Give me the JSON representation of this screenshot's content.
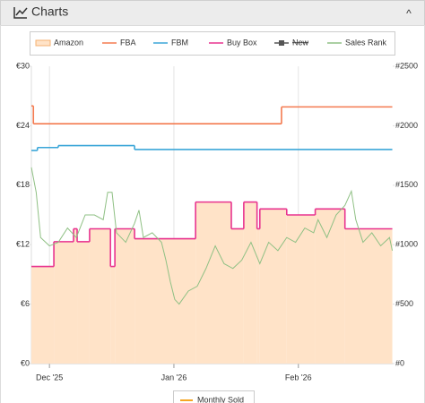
{
  "header": {
    "title": "Charts",
    "toggle": "^"
  },
  "chart_data": {
    "type": "line",
    "xlim": [
      -4.5,
      85.5
    ],
    "xticks": [
      {
        "value": 0,
        "label": "Dec '25"
      },
      {
        "value": 31,
        "label": "Jan '26"
      },
      {
        "value": 62,
        "label": "Feb '26"
      }
    ],
    "ylim": [
      0,
      30
    ],
    "yticks": [
      {
        "value": 0,
        "label": "€0"
      },
      {
        "value": 6,
        "label": "€6"
      },
      {
        "value": 12,
        "label": "€12"
      },
      {
        "value": 18,
        "label": "€18"
      },
      {
        "value": 24,
        "label": "€24"
      },
      {
        "value": 30,
        "label": "€30"
      }
    ],
    "y2lim": [
      0,
      2500
    ],
    "y2ticks": [
      {
        "value": 0,
        "label": "#0"
      },
      {
        "value": 500,
        "label": "#500"
      },
      {
        "value": 1000,
        "label": "#1000"
      },
      {
        "value": 1500,
        "label": "#1500"
      },
      {
        "value": 2000,
        "label": "#2000"
      },
      {
        "value": 2500,
        "label": "#2500"
      }
    ],
    "grid": "x",
    "series": [
      {
        "name": "Amazon",
        "color": "#ffe3c8",
        "style": "area",
        "step": true,
        "x": [
          -4.5,
          1.1,
          6,
          6.9,
          10,
          15.2,
          16.3,
          21.2,
          36.4,
          45.3,
          48.4,
          51.7,
          52.4,
          59.1,
          66.2,
          73.6,
          85.4
        ],
        "values": [
          9.8,
          12.3,
          13.6,
          12.3,
          13.6,
          9.8,
          13.6,
          12.6,
          16.3,
          13.6,
          16.3,
          13.6,
          15.6,
          15,
          15.6,
          13.6,
          13.6
        ]
      },
      {
        "name": "FBA",
        "color": "#f47a4f",
        "style": "line",
        "step": true,
        "x": [
          -4.5,
          -4,
          57.8,
          85.4
        ],
        "values": [
          26,
          24.2,
          25.9,
          25.9
        ]
      },
      {
        "name": "FBM",
        "color": "#3aa6d8",
        "style": "line",
        "step": true,
        "x": [
          -4.5,
          -3,
          2.2,
          21.2,
          85.4
        ],
        "values": [
          21.5,
          21.8,
          22,
          21.6,
          21.6
        ]
      },
      {
        "name": "Buy Box",
        "color": "#e8338f",
        "style": "line",
        "step": true,
        "x": [
          -4.5,
          1.1,
          6,
          6.9,
          10,
          15.2,
          16.3,
          21.2,
          36.4,
          45.3,
          48.4,
          51.7,
          52.4,
          59.1,
          66.2,
          73.6,
          85.4
        ],
        "values": [
          9.8,
          12.3,
          13.6,
          12.3,
          13.6,
          9.8,
          13.6,
          12.6,
          16.3,
          13.6,
          16.3,
          13.6,
          15.6,
          15,
          15.6,
          13.6,
          13.6
        ]
      },
      {
        "name": "New",
        "color": "#555555",
        "style": "line",
        "hidden": true,
        "x": [],
        "values": []
      },
      {
        "name": "Sales Rank",
        "color": "#8fc084",
        "style": "line",
        "axis": "y2",
        "x": [
          -4.5,
          -3.3,
          -2.2,
          0,
          2.2,
          4.5,
          6.7,
          8.9,
          11.2,
          13.4,
          14.5,
          15.6,
          16.7,
          19,
          21.2,
          22.3,
          23.4,
          25.6,
          27.9,
          29,
          30.1,
          31.2,
          32.3,
          34.6,
          36.8,
          39,
          41.3,
          43.5,
          45.7,
          47.9,
          50.2,
          52.4,
          54.6,
          56.9,
          59.1,
          61.3,
          63.6,
          65.8,
          66.9,
          69.1,
          71.4,
          73.6,
          75.2,
          76.3,
          78.1,
          80.3,
          82.5,
          84.7,
          85.4
        ],
        "values": [
          1650,
          1440,
          1060,
          990,
          1020,
          1140,
          1060,
          1250,
          1250,
          1210,
          1440,
          1440,
          1100,
          1020,
          1180,
          1290,
          1060,
          1100,
          1020,
          870,
          690,
          540,
          500,
          610,
          650,
          800,
          990,
          840,
          800,
          870,
          1020,
          840,
          1020,
          950,
          1060,
          1020,
          1140,
          1100,
          1210,
          1060,
          1250,
          1330,
          1450,
          1210,
          1020,
          1100,
          990,
          1060,
          950
        ]
      }
    ],
    "bottom_legend": "Monthly Sold"
  }
}
